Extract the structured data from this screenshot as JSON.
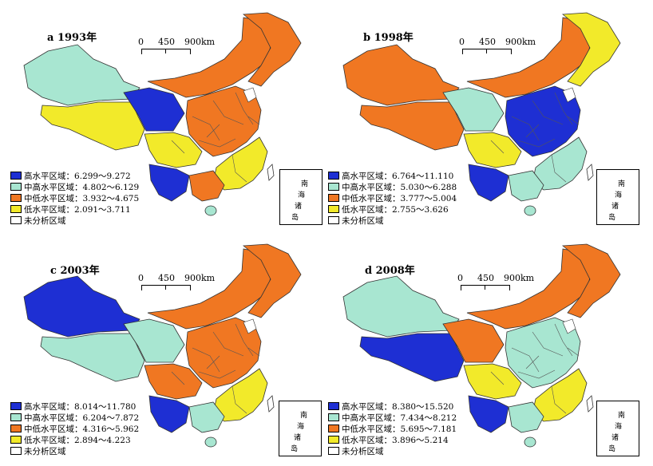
{
  "colors": {
    "high": "#1e2fd3",
    "midhigh": "#a8e6d1",
    "midlow": "#f07722",
    "low": "#f2ea2a",
    "none": "#ffffff"
  },
  "scale": {
    "zero": "0",
    "mid": "450",
    "end": "900km"
  },
  "scs_inset": {
    "c1": "南",
    "c2": "海",
    "c3": "诸",
    "c4": "岛"
  },
  "panels": [
    {
      "title": "a 1993年",
      "colors": [
        "midhigh",
        "low",
        "high",
        "midlow",
        "midlow",
        "low",
        "high",
        "midlow",
        "low",
        "midlow"
      ],
      "legend": [
        {
          "label": "高水平区域：",
          "range": "6.299～9.272"
        },
        {
          "label": "中高水平区域：",
          "range": "4.802～6.129"
        },
        {
          "label": "中低水平区域：",
          "range": "3.932～4.675"
        },
        {
          "label": "低水平区域：",
          "range": "2.091～3.711"
        },
        {
          "label": "未分析区域",
          "range": ""
        }
      ]
    },
    {
      "title": "b 1998年",
      "colors": [
        "midlow",
        "midlow",
        "midhigh",
        "midlow",
        "low",
        "low",
        "high",
        "high",
        "midhigh",
        "midhigh"
      ],
      "legend": [
        {
          "label": "高水平区域：",
          "range": "6.764～11.110"
        },
        {
          "label": "中高水平区域：",
          "range": "5.030～6.288"
        },
        {
          "label": "中低水平区域：",
          "range": "3.777～5.004"
        },
        {
          "label": "低水平区域：",
          "range": "2.755～3.626"
        },
        {
          "label": "未分析区域",
          "range": ""
        }
      ]
    },
    {
      "title": "c 2003年",
      "colors": [
        "high",
        "midhigh",
        "midhigh",
        "midlow",
        "midlow",
        "midlow",
        "high",
        "midlow",
        "low",
        "midhigh"
      ],
      "legend": [
        {
          "label": "高水平区域：",
          "range": "8.014～11.780"
        },
        {
          "label": "中高水平区域：",
          "range": "6.204～7.872"
        },
        {
          "label": "中低水平区域：",
          "range": "4.316～5.962"
        },
        {
          "label": "低水平区域：",
          "range": "2.894～4.223"
        },
        {
          "label": "未分析区域",
          "range": ""
        }
      ]
    },
    {
      "title": "d 2008年",
      "colors": [
        "midhigh",
        "high",
        "midlow",
        "midlow",
        "midlow",
        "low",
        "high",
        "midhigh",
        "low",
        "midhigh"
      ],
      "legend": [
        {
          "label": "高水平区域：",
          "range": "8.380～15.520"
        },
        {
          "label": "中高水平区域：",
          "range": "7.434～8.212"
        },
        {
          "label": "中低水平区域：",
          "range": "5.695～7.181"
        },
        {
          "label": "低水平区域：",
          "range": "3.896～5.214"
        },
        {
          "label": "未分析区域",
          "range": ""
        }
      ]
    }
  ]
}
